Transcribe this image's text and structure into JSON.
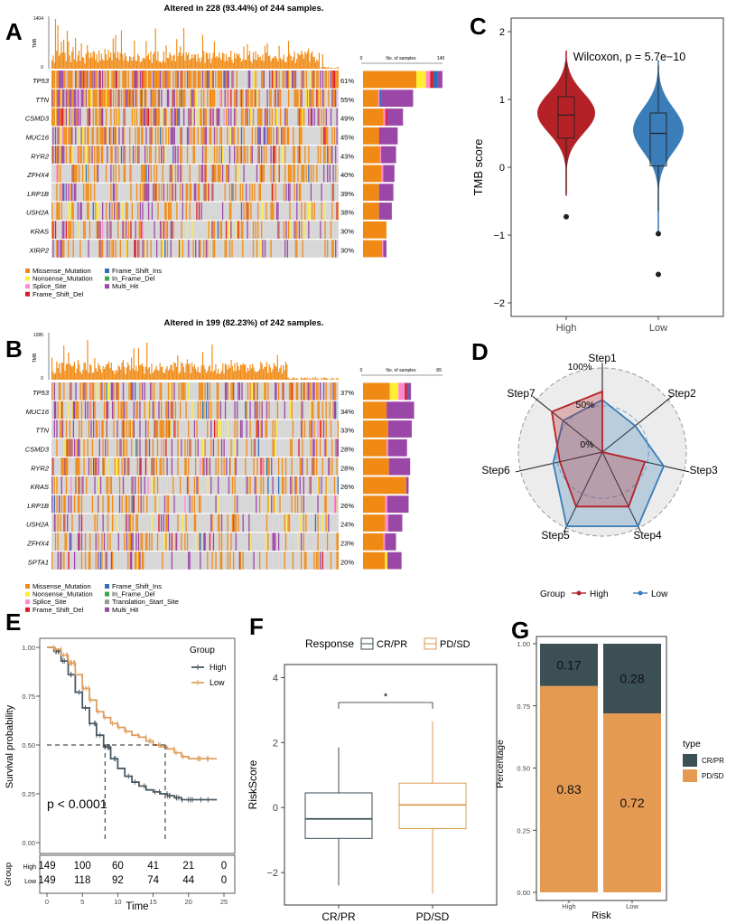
{
  "panel_labels": {
    "A": "A",
    "B": "B",
    "C": "C",
    "D": "D",
    "E": "E",
    "F": "F",
    "G": "G"
  },
  "colors": {
    "missense": "#f08a14",
    "nonsense": "#ffee33",
    "splice": "#ff88cc",
    "fs_del": "#e0182a",
    "fs_ins": "#2f6fb4",
    "inframe_del": "#3aa849",
    "multi": "#9b47a7",
    "tss": "#999999",
    "bg_cell": "#d5d5d5",
    "high_red": "#b42126",
    "low_blue": "#3a7db8",
    "km_high": "#4a5a64",
    "km_low": "#dda060",
    "resp_cr": "#3a4e56",
    "resp_pd": "#dd9a55",
    "g_cr": "#3b4f55",
    "g_pd": "#e59a52"
  },
  "chart_data": [
    {
      "id": "A",
      "type": "table",
      "title": "Altered in 228 (93.44%) of 244 samples.",
      "tmb_label": "TMB",
      "tmb_max": "1404",
      "tmb_min": "0",
      "samples_axis": {
        "label": "No. of samples",
        "min": "0",
        "max": "149"
      },
      "genes": [
        "TP53",
        "TTN",
        "CSMD3",
        "MUC16",
        "RYR2",
        "ZFHX4",
        "LRP1B",
        "USH2A",
        "KRAS",
        "XIRP2"
      ],
      "percents": [
        "61%",
        "55%",
        "49%",
        "45%",
        "43%",
        "40%",
        "39%",
        "38%",
        "30%",
        "30%"
      ],
      "bars": [
        [
          100,
          18,
          8,
          6,
          7,
          10
        ],
        [
          28,
          0,
          3,
          0,
          3,
          60
        ],
        [
          38,
          0,
          4,
          3,
          0,
          30
        ],
        [
          30,
          0,
          0,
          2,
          0,
          33
        ],
        [
          32,
          0,
          2,
          0,
          0,
          28
        ],
        [
          35,
          0,
          3,
          0,
          0,
          21
        ],
        [
          30,
          0,
          0,
          0,
          0,
          27
        ],
        [
          30,
          0,
          0,
          0,
          0,
          24
        ],
        [
          44,
          0,
          0,
          0,
          0,
          0
        ],
        [
          36,
          0,
          2,
          0,
          0,
          6
        ]
      ],
      "legend": [
        "Missense_Mutation",
        "Nonsense_Mutation",
        "Splice_Site",
        "Frame_Shift_Del",
        "Frame_Shift_Ins",
        "In_Frame_Del",
        "Multi_Hit"
      ],
      "legend_keys": [
        "missense",
        "nonsense",
        "splice",
        "fs_del",
        "fs_ins",
        "inframe_del",
        "multi"
      ]
    },
    {
      "id": "B",
      "type": "table",
      "title": "Altered in 199 (82.23%) of 242 samples.",
      "tmb_label": "TMB",
      "tmb_max": "1285",
      "tmb_min": "0",
      "samples_axis": {
        "label": "No. of samples",
        "min": "0",
        "max": "89"
      },
      "genes": [
        "TP53",
        "MUC16",
        "TTN",
        "CSMD3",
        "RYR2",
        "KRAS",
        "LRP1B",
        "USH2A",
        "ZFHX4",
        "SPTA1"
      ],
      "percents": [
        "37%",
        "34%",
        "33%",
        "28%",
        "28%",
        "26%",
        "26%",
        "24%",
        "23%",
        "20%"
      ],
      "bars": [
        [
          34,
          11,
          8,
          3,
          2,
          3
        ],
        [
          30,
          0,
          0,
          0,
          0,
          35
        ],
        [
          32,
          0,
          0,
          0,
          0,
          30
        ],
        [
          30,
          0,
          2,
          0,
          0,
          24
        ],
        [
          33,
          0,
          0,
          0,
          0,
          27
        ],
        [
          55,
          0,
          0,
          0,
          0,
          3
        ],
        [
          28,
          0,
          3,
          0,
          0,
          27
        ],
        [
          28,
          0,
          4,
          0,
          0,
          18
        ],
        [
          26,
          0,
          2,
          0,
          0,
          14
        ],
        [
          28,
          3,
          0,
          0,
          0,
          18
        ]
      ],
      "legend": [
        "Missense_Mutation",
        "Nonsense_Mutation",
        "Splice_Site",
        "Frame_Shift_Del",
        "Frame_Shift_Ins",
        "In_Frame_Del",
        "Translation_Start_Site",
        "Multi_Hit"
      ],
      "legend_keys": [
        "missense",
        "nonsense",
        "splice",
        "fs_del",
        "fs_ins",
        "inframe_del",
        "tss",
        "multi"
      ]
    },
    {
      "id": "C",
      "type": "scatter",
      "title": "Wilcoxon, p = 5.7e−10",
      "xlabel": "",
      "ylabel": "TMB score",
      "categories": [
        "High",
        "Low"
      ],
      "ylim": [
        -2.2,
        2.2
      ],
      "yticks": [
        "2",
        "1",
        "0",
        "−1",
        "−2"
      ],
      "ytick_values": [
        2,
        1,
        0,
        -1,
        -2
      ],
      "box": [
        {
          "q1": 0.43,
          "median": 0.77,
          "q3": 1.04,
          "whisk_lo": -0.38,
          "whisk_hi": 1.55
        },
        {
          "q1": 0.02,
          "median": 0.5,
          "q3": 0.8,
          "whisk_lo": -0.65,
          "whisk_hi": 1.5
        }
      ],
      "outliers": [
        [
          -0.73
        ],
        [
          -0.98,
          -1.58
        ]
      ]
    },
    {
      "id": "D",
      "type": "line",
      "axes": [
        "Step1",
        "Step2",
        "Step3",
        "Step4",
        "Step5",
        "Step6",
        "Step7"
      ],
      "rings": [
        "100%",
        "50%",
        "0%"
      ],
      "series": [
        {
          "name": "High",
          "values": [
            0.72,
            0.0,
            0.52,
            0.72,
            0.72,
            0.52,
            0.77
          ]
        },
        {
          "name": "Low",
          "values": [
            0.62,
            0.5,
            0.75,
            0.98,
            0.98,
            0.6,
            0.6
          ]
        }
      ],
      "legend_title": "Group"
    },
    {
      "id": "E",
      "type": "line",
      "xlabel": "Time",
      "ylabel": "Survival probability",
      "xlim": [
        0,
        25
      ],
      "ylim": [
        0,
        1
      ],
      "xticks": [
        "0",
        "5",
        "10",
        "15",
        "20",
        "25"
      ],
      "yticks": [
        "0.00",
        "0.25",
        "0.50",
        "0.75",
        "1.00"
      ],
      "series": [
        {
          "name": "High",
          "x": [
            0,
            1,
            2,
            3,
            4,
            5,
            6,
            7,
            8,
            9,
            10,
            11,
            12,
            13,
            14,
            15,
            16,
            17,
            18,
            19,
            20,
            21,
            22,
            24
          ],
          "values": [
            1.0,
            0.98,
            0.93,
            0.86,
            0.77,
            0.69,
            0.61,
            0.55,
            0.49,
            0.43,
            0.38,
            0.34,
            0.31,
            0.29,
            0.27,
            0.26,
            0.25,
            0.24,
            0.23,
            0.22,
            0.22,
            0.22,
            0.22,
            0.22
          ]
        },
        {
          "name": "Low",
          "x": [
            0,
            1,
            2,
            3,
            4,
            5,
            6,
            7,
            8,
            9,
            10,
            11,
            12,
            13,
            14,
            15,
            16,
            17,
            18,
            19,
            20,
            21,
            22,
            24
          ],
          "values": [
            1.0,
            0.99,
            0.96,
            0.92,
            0.86,
            0.79,
            0.73,
            0.67,
            0.64,
            0.61,
            0.59,
            0.57,
            0.55,
            0.54,
            0.52,
            0.5,
            0.49,
            0.48,
            0.46,
            0.44,
            0.43,
            0.43,
            0.43,
            0.43
          ]
        }
      ],
      "pvalue": "p < 0.0001",
      "legend_title": "Group",
      "risk_label": "Group",
      "risk_table": [
        {
          "name": "High",
          "values": [
            "149",
            "100",
            "60",
            "41",
            "21",
            "0"
          ]
        },
        {
          "name": "Low",
          "values": [
            "149",
            "118",
            "92",
            "74",
            "44",
            "0"
          ]
        }
      ]
    },
    {
      "id": "F",
      "type": "scatter",
      "xlabel": "",
      "ylabel": "RiskScore",
      "categories": [
        "CR/PR",
        "PD/SD"
      ],
      "ylim": [
        -3,
        4.4
      ],
      "yticks": [
        "4",
        "2",
        "0",
        "−2"
      ],
      "ytick_values": [
        4,
        2,
        0,
        -2
      ],
      "legend_title": "Response",
      "box": [
        {
          "q1": -0.95,
          "median": -0.35,
          "q3": 0.45,
          "whisk_lo": -2.4,
          "whisk_hi": 1.85
        },
        {
          "q1": -0.65,
          "median": 0.08,
          "q3": 0.75,
          "whisk_lo": -2.65,
          "whisk_hi": 2.65
        }
      ],
      "signif": "*"
    },
    {
      "id": "G",
      "type": "bar",
      "xlabel": "Risk",
      "ylabel": "Percentage",
      "categories": [
        "High",
        "Low"
      ],
      "ylim": [
        0,
        1
      ],
      "yticks": [
        "0.00",
        "0.25",
        "0.50",
        "0.75",
        "1.00"
      ],
      "series": [
        {
          "name": "CR/PR",
          "values": [
            0.17,
            0.28
          ],
          "labels": [
            "0.17",
            "0.28"
          ]
        },
        {
          "name": "PD/SD",
          "values": [
            0.83,
            0.72
          ],
          "labels": [
            "0.83",
            "0.72"
          ]
        }
      ],
      "legend_title": "type"
    }
  ]
}
